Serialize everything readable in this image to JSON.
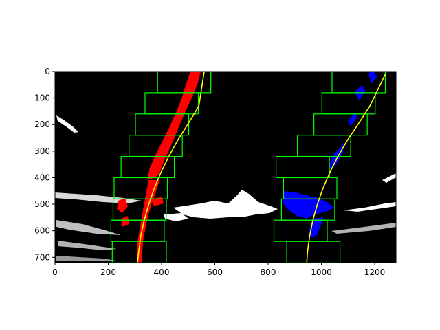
{
  "chart_data": {
    "type": "image",
    "title": "",
    "xlabel": "",
    "ylabel": "",
    "xlim": [
      0,
      1280
    ],
    "ylim": [
      720,
      0
    ],
    "xticks": [
      0,
      200,
      400,
      600,
      800,
      1000,
      1200
    ],
    "yticks": [
      0,
      100,
      200,
      300,
      400,
      500,
      600,
      700
    ],
    "xtick_labels": [
      "0",
      "200",
      "400",
      "600",
      "800",
      "1000",
      "1200"
    ],
    "ytick_labels": [
      "0",
      "100",
      "200",
      "300",
      "400",
      "500",
      "600",
      "700"
    ],
    "colors": {
      "background": "#000000",
      "left_lane_pixels": "#ff0000",
      "right_lane_pixels": "#0000ff",
      "windows": "#00ff00",
      "fit_line": "#ffff00",
      "binary_noise": "#ffffff"
    },
    "series": [
      {
        "x": [
          310,
          314,
          322,
          335,
          352,
          373,
          398,
          427,
          460,
          498,
          540,
          560
        ],
        "y": [
          720,
          680,
          620,
          560,
          500,
          440,
          380,
          320,
          260,
          200,
          130,
          0
        ]
      },
      {
        "x": [
          945,
          948,
          956,
          968,
          985,
          1006,
          1032,
          1062,
          1097,
          1137,
          1182,
          1240
        ],
        "y": [
          720,
          680,
          620,
          560,
          500,
          440,
          380,
          320,
          260,
          200,
          130,
          10
        ]
      }
    ],
    "search_windows": {
      "left": [
        {
          "x0": 215,
          "x1": 418,
          "y0": 640,
          "y1": 720
        },
        {
          "x0": 210,
          "x1": 410,
          "y0": 560,
          "y1": 640
        },
        {
          "x0": 218,
          "x1": 418,
          "y0": 480,
          "y1": 560
        },
        {
          "x0": 222,
          "x1": 422,
          "y0": 400,
          "y1": 480
        },
        {
          "x0": 248,
          "x1": 448,
          "y0": 320,
          "y1": 400
        },
        {
          "x0": 278,
          "x1": 478,
          "y0": 240,
          "y1": 320
        },
        {
          "x0": 302,
          "x1": 502,
          "y0": 160,
          "y1": 240
        },
        {
          "x0": 338,
          "x1": 538,
          "y0": 80,
          "y1": 160
        },
        {
          "x0": 385,
          "x1": 585,
          "y0": 0,
          "y1": 80
        }
      ],
      "right": [
        {
          "x0": 870,
          "x1": 1070,
          "y0": 640,
          "y1": 720
        },
        {
          "x0": 822,
          "x1": 1022,
          "y0": 560,
          "y1": 640
        },
        {
          "x0": 850,
          "x1": 1050,
          "y0": 480,
          "y1": 560
        },
        {
          "x0": 858,
          "x1": 1058,
          "y0": 400,
          "y1": 480
        },
        {
          "x0": 830,
          "x1": 1030,
          "y0": 320,
          "y1": 400
        },
        {
          "x0": 910,
          "x1": 1110,
          "y0": 240,
          "y1": 320
        },
        {
          "x0": 972,
          "x1": 1172,
          "y0": 160,
          "y1": 240
        },
        {
          "x0": 1002,
          "x1": 1202,
          "y0": 80,
          "y1": 160
        },
        {
          "x0": 1040,
          "x1": 1240,
          "y0": 0,
          "y1": 80
        }
      ]
    }
  }
}
